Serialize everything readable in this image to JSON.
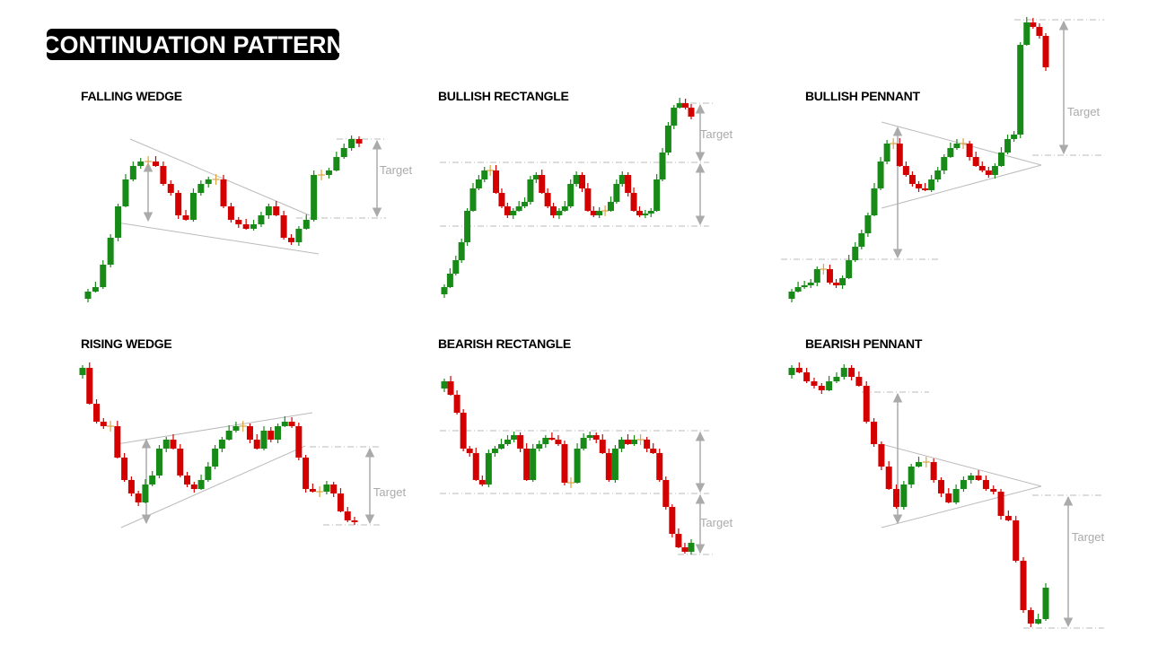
{
  "header": {
    "title": "CONTINUATION PATTERN"
  },
  "panels": [
    {
      "title": "FALLING WEDGE",
      "target": "Target"
    },
    {
      "title": "BULLISH RECTANGLE",
      "target": "Target"
    },
    {
      "title": "BULLISH PENNANT",
      "target": "Target"
    },
    {
      "title": "RISING WEDGE",
      "target": "Target"
    },
    {
      "title": "BEARISH RECTANGLE",
      "target": "Target"
    },
    {
      "title": "BEARISH PENNANT",
      "target": "Target"
    }
  ]
}
